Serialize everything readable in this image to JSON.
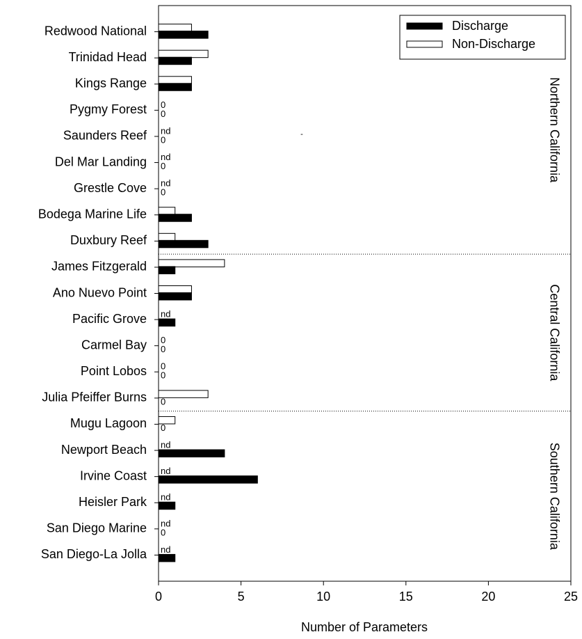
{
  "chart_data": {
    "type": "hbar",
    "xlabel": "Number of Parameters",
    "categories": [
      "Redwood National",
      "Trinidad Head",
      "Kings Range",
      "Pygmy Forest",
      "Saunders Reef",
      "Del Mar Landing",
      "Grestle Cove",
      "Bodega Marine Life",
      "Duxbury Reef",
      "James Fitzgerald",
      "Ano Nuevo Point",
      "Pacific Grove",
      "Carmel Bay",
      "Point Lobos",
      "Julia Pfeiffer Burns",
      "Mugu Lagoon",
      "Newport Beach",
      "Irvine Coast",
      "Heisler Park",
      "San Diego Marine",
      "San Diego-La Jolla"
    ],
    "series": [
      {
        "name": "Discharge",
        "color": "#000000",
        "values": [
          3,
          2,
          2,
          0,
          0,
          0,
          0,
          2,
          3,
          1,
          2,
          1,
          0,
          0,
          0,
          0,
          4,
          6,
          1,
          0,
          1
        ],
        "value_labels": [
          null,
          null,
          null,
          "0",
          "0",
          "0",
          "0",
          null,
          null,
          null,
          null,
          null,
          "0",
          "0",
          "0",
          "0",
          null,
          null,
          null,
          "0",
          null
        ]
      },
      {
        "name": "Non-Discharge",
        "color": "#ffffff",
        "values": [
          2,
          3,
          2,
          0,
          null,
          null,
          null,
          1,
          1,
          4,
          2,
          null,
          0,
          0,
          3,
          1,
          null,
          null,
          null,
          null,
          null
        ],
        "value_labels": [
          null,
          null,
          null,
          "0",
          "nd",
          "nd",
          "nd",
          null,
          null,
          null,
          null,
          "nd",
          "0",
          "0",
          null,
          null,
          "nd",
          "nd",
          "nd",
          "nd",
          "nd"
        ]
      }
    ],
    "regions": [
      "Northern California",
      "Central California",
      "Southern California"
    ],
    "annotations": [
      "-"
    ],
    "xlim": [
      0,
      25
    ],
    "xticks": [
      0,
      5,
      10,
      15,
      20,
      25
    ],
    "legend": "top-right"
  }
}
